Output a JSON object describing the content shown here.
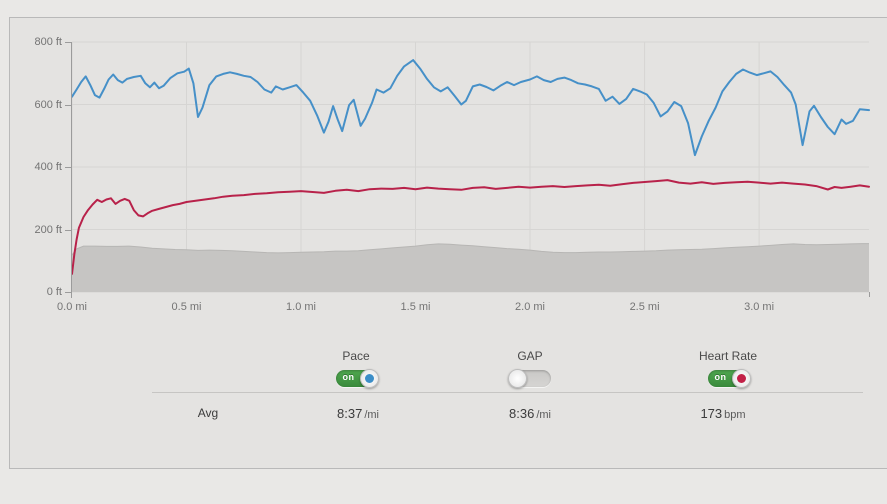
{
  "colors": {
    "page_bg": "#e9e8e6",
    "panel_bg": "#e4e3e1",
    "panel_border": "#b9b9b9",
    "grid": "#d6d5d3",
    "axis": "#9b9b9b",
    "tick_text": "#747474",
    "elevation_fill": "#c6c5c3",
    "elevation_edge": "#b7b6b4",
    "pace_blue": "#4690c8",
    "heart_rate_red": "#b8224a",
    "toggle_on_green": "#3f8f41",
    "toggle_off_gray": "#cfcfcd"
  },
  "chart_data": {
    "type": "line",
    "xlim": [
      0,
      3.48
    ],
    "ylim": [
      0,
      800
    ],
    "grid": true,
    "x_ticks": [
      {
        "value": 0.0,
        "label": "0.0 mi"
      },
      {
        "value": 0.5,
        "label": "0.5 mi"
      },
      {
        "value": 1.0,
        "label": "1.0 mi"
      },
      {
        "value": 1.5,
        "label": "1.5 mi"
      },
      {
        "value": 2.0,
        "label": "2.0 mi"
      },
      {
        "value": 2.5,
        "label": "2.5 mi"
      },
      {
        "value": 3.0,
        "label": "3.0 mi"
      }
    ],
    "y_ticks": [
      {
        "value": 0,
        "label": "0 ft"
      },
      {
        "value": 200,
        "label": "200 ft"
      },
      {
        "value": 400,
        "label": "400 ft"
      },
      {
        "value": 600,
        "label": "600 ft"
      },
      {
        "value": 800,
        "label": "800 ft"
      }
    ],
    "series": [
      {
        "name": "Elevation",
        "type": "area",
        "color": "#c6c5c3",
        "edge_color": "#b7b6b4",
        "points": [
          [
            0.0,
            118
          ],
          [
            0.02,
            138
          ],
          [
            0.05,
            147
          ],
          [
            0.1,
            147
          ],
          [
            0.15,
            146
          ],
          [
            0.2,
            146
          ],
          [
            0.25,
            147
          ],
          [
            0.3,
            144
          ],
          [
            0.35,
            140
          ],
          [
            0.4,
            138
          ],
          [
            0.45,
            136
          ],
          [
            0.5,
            135
          ],
          [
            0.55,
            133
          ],
          [
            0.6,
            134
          ],
          [
            0.65,
            133
          ],
          [
            0.7,
            132
          ],
          [
            0.75,
            130
          ],
          [
            0.8,
            128
          ],
          [
            0.85,
            126
          ],
          [
            0.9,
            125
          ],
          [
            0.95,
            126
          ],
          [
            1.0,
            127
          ],
          [
            1.05,
            128
          ],
          [
            1.1,
            129
          ],
          [
            1.15,
            131
          ],
          [
            1.2,
            131
          ],
          [
            1.25,
            132
          ],
          [
            1.3,
            135
          ],
          [
            1.35,
            138
          ],
          [
            1.4,
            141
          ],
          [
            1.45,
            144
          ],
          [
            1.5,
            147
          ],
          [
            1.55,
            151
          ],
          [
            1.6,
            154
          ],
          [
            1.65,
            153
          ],
          [
            1.7,
            150
          ],
          [
            1.75,
            148
          ],
          [
            1.8,
            145
          ],
          [
            1.85,
            142
          ],
          [
            1.9,
            139
          ],
          [
            1.95,
            137
          ],
          [
            2.0,
            134
          ],
          [
            2.05,
            130
          ],
          [
            2.1,
            127
          ],
          [
            2.15,
            126
          ],
          [
            2.2,
            126
          ],
          [
            2.25,
            127
          ],
          [
            2.3,
            128
          ],
          [
            2.35,
            128
          ],
          [
            2.4,
            129
          ],
          [
            2.45,
            130
          ],
          [
            2.5,
            131
          ],
          [
            2.55,
            132
          ],
          [
            2.6,
            134
          ],
          [
            2.65,
            135
          ],
          [
            2.7,
            136
          ],
          [
            2.75,
            137
          ],
          [
            2.8,
            139
          ],
          [
            2.85,
            141
          ],
          [
            2.9,
            143
          ],
          [
            2.95,
            145
          ],
          [
            3.0,
            147
          ],
          [
            3.05,
            149
          ],
          [
            3.1,
            152
          ],
          [
            3.15,
            154
          ],
          [
            3.2,
            152
          ],
          [
            3.25,
            151
          ],
          [
            3.3,
            152
          ],
          [
            3.35,
            153
          ],
          [
            3.4,
            154
          ],
          [
            3.45,
            155
          ],
          [
            3.48,
            155
          ]
        ]
      },
      {
        "name": "Heart Rate",
        "type": "line",
        "color": "#b8224a",
        "points": [
          [
            0.0,
            58
          ],
          [
            0.01,
            120
          ],
          [
            0.02,
            168
          ],
          [
            0.03,
            205
          ],
          [
            0.05,
            240
          ],
          [
            0.07,
            262
          ],
          [
            0.09,
            280
          ],
          [
            0.11,
            295
          ],
          [
            0.13,
            288
          ],
          [
            0.15,
            296
          ],
          [
            0.17,
            300
          ],
          [
            0.19,
            282
          ],
          [
            0.21,
            292
          ],
          [
            0.23,
            298
          ],
          [
            0.25,
            292
          ],
          [
            0.27,
            262
          ],
          [
            0.29,
            245
          ],
          [
            0.31,
            242
          ],
          [
            0.33,
            252
          ],
          [
            0.35,
            260
          ],
          [
            0.38,
            266
          ],
          [
            0.41,
            272
          ],
          [
            0.44,
            278
          ],
          [
            0.47,
            282
          ],
          [
            0.5,
            288
          ],
          [
            0.54,
            292
          ],
          [
            0.58,
            296
          ],
          [
            0.62,
            300
          ],
          [
            0.66,
            305
          ],
          [
            0.7,
            308
          ],
          [
            0.75,
            310
          ],
          [
            0.8,
            314
          ],
          [
            0.85,
            316
          ],
          [
            0.9,
            319
          ],
          [
            0.95,
            321
          ],
          [
            1.0,
            323
          ],
          [
            1.05,
            320
          ],
          [
            1.1,
            317
          ],
          [
            1.15,
            324
          ],
          [
            1.2,
            327
          ],
          [
            1.25,
            323
          ],
          [
            1.3,
            329
          ],
          [
            1.35,
            331
          ],
          [
            1.4,
            330
          ],
          [
            1.45,
            333
          ],
          [
            1.5,
            329
          ],
          [
            1.55,
            334
          ],
          [
            1.6,
            331
          ],
          [
            1.65,
            329
          ],
          [
            1.7,
            327
          ],
          [
            1.75,
            333
          ],
          [
            1.8,
            335
          ],
          [
            1.85,
            330
          ],
          [
            1.9,
            333
          ],
          [
            1.95,
            337
          ],
          [
            2.0,
            334
          ],
          [
            2.05,
            337
          ],
          [
            2.1,
            339
          ],
          [
            2.15,
            336
          ],
          [
            2.2,
            339
          ],
          [
            2.25,
            341
          ],
          [
            2.3,
            343
          ],
          [
            2.35,
            340
          ],
          [
            2.4,
            345
          ],
          [
            2.45,
            349
          ],
          [
            2.5,
            352
          ],
          [
            2.55,
            355
          ],
          [
            2.6,
            358
          ],
          [
            2.65,
            350
          ],
          [
            2.7,
            347
          ],
          [
            2.75,
            351
          ],
          [
            2.8,
            346
          ],
          [
            2.85,
            349
          ],
          [
            2.9,
            351
          ],
          [
            2.95,
            353
          ],
          [
            3.0,
            350
          ],
          [
            3.05,
            347
          ],
          [
            3.1,
            350
          ],
          [
            3.15,
            347
          ],
          [
            3.2,
            344
          ],
          [
            3.25,
            339
          ],
          [
            3.3,
            328
          ],
          [
            3.33,
            336
          ],
          [
            3.36,
            333
          ],
          [
            3.4,
            337
          ],
          [
            3.44,
            341
          ],
          [
            3.48,
            337
          ]
        ]
      },
      {
        "name": "Pace",
        "type": "line",
        "color": "#4690c8",
        "points": [
          [
            0.0,
            625
          ],
          [
            0.02,
            648
          ],
          [
            0.04,
            672
          ],
          [
            0.06,
            690
          ],
          [
            0.08,
            662
          ],
          [
            0.1,
            630
          ],
          [
            0.12,
            622
          ],
          [
            0.14,
            650
          ],
          [
            0.16,
            680
          ],
          [
            0.18,
            696
          ],
          [
            0.2,
            678
          ],
          [
            0.22,
            670
          ],
          [
            0.24,
            682
          ],
          [
            0.27,
            688
          ],
          [
            0.3,
            692
          ],
          [
            0.32,
            668
          ],
          [
            0.34,
            655
          ],
          [
            0.36,
            670
          ],
          [
            0.38,
            652
          ],
          [
            0.4,
            660
          ],
          [
            0.43,
            685
          ],
          [
            0.46,
            700
          ],
          [
            0.49,
            705
          ],
          [
            0.51,
            715
          ],
          [
            0.53,
            668
          ],
          [
            0.55,
            560
          ],
          [
            0.57,
            590
          ],
          [
            0.6,
            662
          ],
          [
            0.63,
            690
          ],
          [
            0.66,
            698
          ],
          [
            0.69,
            703
          ],
          [
            0.72,
            698
          ],
          [
            0.75,
            692
          ],
          [
            0.78,
            688
          ],
          [
            0.81,
            672
          ],
          [
            0.84,
            648
          ],
          [
            0.87,
            638
          ],
          [
            0.89,
            658
          ],
          [
            0.92,
            648
          ],
          [
            0.95,
            655
          ],
          [
            0.98,
            662
          ],
          [
            1.01,
            638
          ],
          [
            1.04,
            612
          ],
          [
            1.07,
            565
          ],
          [
            1.1,
            510
          ],
          [
            1.12,
            545
          ],
          [
            1.14,
            595
          ],
          [
            1.16,
            552
          ],
          [
            1.18,
            515
          ],
          [
            1.21,
            598
          ],
          [
            1.23,
            615
          ],
          [
            1.26,
            532
          ],
          [
            1.28,
            555
          ],
          [
            1.31,
            605
          ],
          [
            1.33,
            648
          ],
          [
            1.36,
            638
          ],
          [
            1.39,
            652
          ],
          [
            1.42,
            692
          ],
          [
            1.45,
            722
          ],
          [
            1.49,
            742
          ],
          [
            1.52,
            715
          ],
          [
            1.55,
            682
          ],
          [
            1.58,
            655
          ],
          [
            1.61,
            642
          ],
          [
            1.64,
            655
          ],
          [
            1.67,
            628
          ],
          [
            1.7,
            600
          ],
          [
            1.72,
            612
          ],
          [
            1.75,
            658
          ],
          [
            1.78,
            664
          ],
          [
            1.81,
            656
          ],
          [
            1.84,
            645
          ],
          [
            1.87,
            660
          ],
          [
            1.9,
            672
          ],
          [
            1.93,
            662
          ],
          [
            1.96,
            672
          ],
          [
            2.0,
            680
          ],
          [
            2.03,
            690
          ],
          [
            2.06,
            678
          ],
          [
            2.09,
            672
          ],
          [
            2.12,
            682
          ],
          [
            2.15,
            686
          ],
          [
            2.18,
            678
          ],
          [
            2.21,
            668
          ],
          [
            2.24,
            664
          ],
          [
            2.27,
            658
          ],
          [
            2.3,
            650
          ],
          [
            2.33,
            612
          ],
          [
            2.36,
            625
          ],
          [
            2.39,
            602
          ],
          [
            2.42,
            618
          ],
          [
            2.45,
            650
          ],
          [
            2.48,
            642
          ],
          [
            2.51,
            632
          ],
          [
            2.54,
            605
          ],
          [
            2.57,
            562
          ],
          [
            2.6,
            578
          ],
          [
            2.63,
            608
          ],
          [
            2.66,
            595
          ],
          [
            2.69,
            540
          ],
          [
            2.72,
            438
          ],
          [
            2.75,
            498
          ],
          [
            2.78,
            548
          ],
          [
            2.81,
            590
          ],
          [
            2.84,
            642
          ],
          [
            2.87,
            672
          ],
          [
            2.9,
            698
          ],
          [
            2.93,
            712
          ],
          [
            2.96,
            702
          ],
          [
            2.99,
            694
          ],
          [
            3.02,
            700
          ],
          [
            3.05,
            706
          ],
          [
            3.08,
            688
          ],
          [
            3.11,
            662
          ],
          [
            3.14,
            638
          ],
          [
            3.16,
            600
          ],
          [
            3.19,
            470
          ],
          [
            3.22,
            578
          ],
          [
            3.24,
            596
          ],
          [
            3.27,
            560
          ],
          [
            3.3,
            528
          ],
          [
            3.33,
            505
          ],
          [
            3.36,
            552
          ],
          [
            3.38,
            538
          ],
          [
            3.41,
            548
          ],
          [
            3.44,
            585
          ],
          [
            3.48,
            582
          ]
        ]
      }
    ]
  },
  "toggles": [
    {
      "label": "Pace",
      "state": "on",
      "state_label": "on",
      "knob_color": "#3c8ec8"
    },
    {
      "label": "GAP",
      "state": "off",
      "state_label": "",
      "knob_color": ""
    },
    {
      "label": "Heart Rate",
      "state": "on",
      "state_label": "on",
      "knob_color": "#c22047"
    }
  ],
  "summary": {
    "label": "Avg",
    "values": [
      {
        "value": "8:37",
        "unit": "/mi"
      },
      {
        "value": "8:36",
        "unit": "/mi"
      },
      {
        "value": "173",
        "unit": "bpm"
      }
    ]
  }
}
